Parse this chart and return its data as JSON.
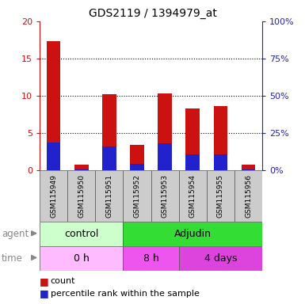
{
  "title": "GDS2119 / 1394979_at",
  "samples": [
    "GSM115949",
    "GSM115950",
    "GSM115951",
    "GSM115952",
    "GSM115953",
    "GSM115954",
    "GSM115955",
    "GSM115956"
  ],
  "count_values": [
    17.3,
    0.8,
    10.2,
    3.4,
    10.3,
    8.3,
    8.6,
    0.8
  ],
  "percentile_values": [
    3.7,
    0.1,
    3.2,
    0.9,
    3.6,
    2.1,
    2.1,
    0.1
  ],
  "ylim_left": [
    0,
    20
  ],
  "ylim_right": [
    0,
    100
  ],
  "yticks_left": [
    0,
    5,
    10,
    15,
    20
  ],
  "yticks_right": [
    0,
    25,
    50,
    75,
    100
  ],
  "ytick_labels_left": [
    "0",
    "5",
    "10",
    "15",
    "20"
  ],
  "ytick_labels_right": [
    "0%",
    "25%",
    "50%",
    "75%",
    "100%"
  ],
  "agent_groups": [
    {
      "label": "control",
      "start": 0,
      "end": 3
    },
    {
      "label": "Adjudin",
      "start": 3,
      "end": 8
    }
  ],
  "agent_colors": {
    "control": "#ccffcc",
    "Adjudin": "#33dd33"
  },
  "time_groups": [
    {
      "label": "0 h",
      "start": 0,
      "end": 3
    },
    {
      "label": "8 h",
      "start": 3,
      "end": 5
    },
    {
      "label": "4 days",
      "start": 5,
      "end": 8
    }
  ],
  "time_colors": {
    "0 h": "#ffbbff",
    "8 h": "#ee55ee",
    "4 days": "#dd44dd"
  },
  "bar_width": 0.5,
  "count_color": "#cc1111",
  "percentile_color": "#2222cc",
  "grid_color": "#000000",
  "bg_color": "#ffffff",
  "sample_bg_color": "#cccccc",
  "left_axis_color": "#cc1111",
  "right_axis_color": "#2222bb",
  "label_color": "#888888"
}
